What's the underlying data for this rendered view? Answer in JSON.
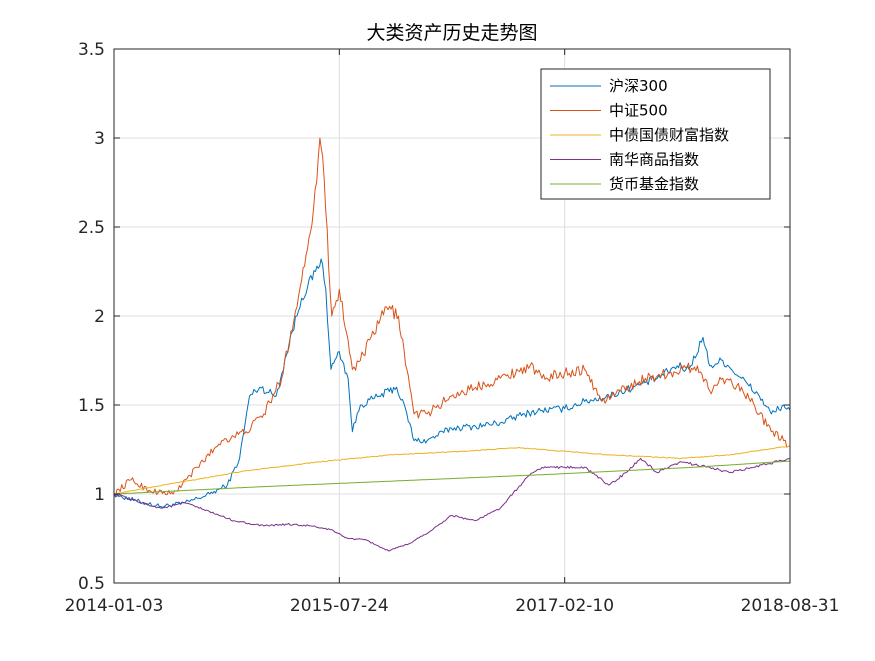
{
  "chart_data": {
    "type": "line",
    "title": "大类资产历史走势图",
    "xlabel": "",
    "ylabel": "",
    "x_tick_labels": [
      "2014-01-03",
      "2015-07-24",
      "2017-02-10",
      "2018-08-31"
    ],
    "xlim": [
      "2014-01-03",
      "2018-08-31"
    ],
    "ylim": [
      0.5,
      3.5
    ],
    "y_ticks": [
      0.5,
      1,
      1.5,
      2,
      2.5,
      3,
      3.5
    ],
    "y_tick_labels": [
      "0.5",
      "1",
      "1.5",
      "2",
      "2.5",
      "3",
      "3.5"
    ],
    "grid": true,
    "legend_position": "top-right",
    "series": [
      {
        "name": "沪深300",
        "color": "#0072BD",
        "points": [
          [
            "2014-01-03",
            1.0
          ],
          [
            "2014-03-01",
            0.96
          ],
          [
            "2014-05-01",
            0.93
          ],
          [
            "2014-07-01",
            0.95
          ],
          [
            "2014-09-01",
            1.0
          ],
          [
            "2014-10-15",
            1.05
          ],
          [
            "2014-11-15",
            1.2
          ],
          [
            "2014-12-10",
            1.55
          ],
          [
            "2015-01-05",
            1.6
          ],
          [
            "2015-02-15",
            1.55
          ],
          [
            "2015-03-20",
            1.85
          ],
          [
            "2015-04-20",
            2.1
          ],
          [
            "2015-05-25",
            2.25
          ],
          [
            "2015-06-08",
            2.32
          ],
          [
            "2015-06-20",
            2.15
          ],
          [
            "2015-07-03",
            1.7
          ],
          [
            "2015-07-24",
            1.8
          ],
          [
            "2015-08-15",
            1.65
          ],
          [
            "2015-08-26",
            1.35
          ],
          [
            "2015-09-15",
            1.5
          ],
          [
            "2015-11-01",
            1.55
          ],
          [
            "2015-12-15",
            1.6
          ],
          [
            "2016-01-10",
            1.45
          ],
          [
            "2016-01-28",
            1.3
          ],
          [
            "2016-03-01",
            1.3
          ],
          [
            "2016-05-01",
            1.37
          ],
          [
            "2016-07-01",
            1.38
          ],
          [
            "2016-09-01",
            1.4
          ],
          [
            "2016-11-01",
            1.45
          ],
          [
            "2016-12-15",
            1.47
          ],
          [
            "2017-02-10",
            1.48
          ],
          [
            "2017-04-01",
            1.52
          ],
          [
            "2017-06-01",
            1.55
          ],
          [
            "2017-08-01",
            1.6
          ],
          [
            "2017-10-01",
            1.65
          ],
          [
            "2017-11-20",
            1.72
          ],
          [
            "2017-12-20",
            1.7
          ],
          [
            "2018-01-24",
            1.88
          ],
          [
            "2018-02-10",
            1.72
          ],
          [
            "2018-03-15",
            1.75
          ],
          [
            "2018-05-01",
            1.65
          ],
          [
            "2018-06-15",
            1.55
          ],
          [
            "2018-07-15",
            1.45
          ],
          [
            "2018-08-15",
            1.5
          ],
          [
            "2018-08-31",
            1.47
          ]
        ]
      },
      {
        "name": "中证500",
        "color": "#D95319",
        "points": [
          [
            "2014-01-03",
            1.0
          ],
          [
            "2014-02-15",
            1.08
          ],
          [
            "2014-04-01",
            1.02
          ],
          [
            "2014-06-01",
            1.0
          ],
          [
            "2014-08-01",
            1.15
          ],
          [
            "2014-10-01",
            1.3
          ],
          [
            "2014-12-01",
            1.35
          ],
          [
            "2015-01-15",
            1.45
          ],
          [
            "2015-03-01",
            1.65
          ],
          [
            "2015-04-20",
            2.2
          ],
          [
            "2015-05-20",
            2.6
          ],
          [
            "2015-06-05",
            3.0
          ],
          [
            "2015-06-12",
            2.9
          ],
          [
            "2015-07-05",
            2.0
          ],
          [
            "2015-07-24",
            2.15
          ],
          [
            "2015-08-26",
            1.7
          ],
          [
            "2015-09-15",
            1.75
          ],
          [
            "2015-11-20",
            2.05
          ],
          [
            "2015-12-20",
            2.0
          ],
          [
            "2016-01-10",
            1.7
          ],
          [
            "2016-01-28",
            1.45
          ],
          [
            "2016-03-01",
            1.45
          ],
          [
            "2016-05-01",
            1.55
          ],
          [
            "2016-07-01",
            1.6
          ],
          [
            "2016-09-01",
            1.65
          ],
          [
            "2016-11-15",
            1.72
          ],
          [
            "2016-12-15",
            1.65
          ],
          [
            "2017-02-10",
            1.68
          ],
          [
            "2017-04-01",
            1.7
          ],
          [
            "2017-05-15",
            1.52
          ],
          [
            "2017-07-01",
            1.58
          ],
          [
            "2017-09-01",
            1.65
          ],
          [
            "2017-11-01",
            1.68
          ],
          [
            "2018-01-10",
            1.72
          ],
          [
            "2018-02-10",
            1.58
          ],
          [
            "2018-03-15",
            1.65
          ],
          [
            "2018-05-01",
            1.6
          ],
          [
            "2018-06-15",
            1.45
          ],
          [
            "2018-07-15",
            1.35
          ],
          [
            "2018-08-15",
            1.3
          ],
          [
            "2018-08-31",
            1.27
          ]
        ]
      },
      {
        "name": "中债国债财富指数",
        "color": "#EDB120",
        "points": [
          [
            "2014-01-03",
            1.0
          ],
          [
            "2014-06-01",
            1.06
          ],
          [
            "2014-12-01",
            1.13
          ],
          [
            "2015-06-01",
            1.18
          ],
          [
            "2015-12-01",
            1.22
          ],
          [
            "2016-06-01",
            1.24
          ],
          [
            "2016-10-15",
            1.26
          ],
          [
            "2017-02-10",
            1.24
          ],
          [
            "2017-06-01",
            1.22
          ],
          [
            "2017-12-01",
            1.2
          ],
          [
            "2018-04-01",
            1.22
          ],
          [
            "2018-08-31",
            1.27
          ]
        ]
      },
      {
        "name": "南华商品指数",
        "color": "#7E2F8E",
        "points": [
          [
            "2014-01-03",
            1.0
          ],
          [
            "2014-03-15",
            0.95
          ],
          [
            "2014-05-01",
            0.92
          ],
          [
            "2014-07-01",
            0.95
          ],
          [
            "2014-09-01",
            0.9
          ],
          [
            "2014-11-01",
            0.85
          ],
          [
            "2015-01-15",
            0.82
          ],
          [
            "2015-03-15",
            0.83
          ],
          [
            "2015-05-15",
            0.82
          ],
          [
            "2015-07-01",
            0.8
          ],
          [
            "2015-08-15",
            0.75
          ],
          [
            "2015-10-01",
            0.74
          ],
          [
            "2015-11-25",
            0.68
          ],
          [
            "2016-01-15",
            0.72
          ],
          [
            "2016-03-15",
            0.8
          ],
          [
            "2016-05-01",
            0.88
          ],
          [
            "2016-07-01",
            0.85
          ],
          [
            "2016-09-01",
            0.92
          ],
          [
            "2016-11-10",
            1.1
          ],
          [
            "2016-12-15",
            1.15
          ],
          [
            "2017-02-10",
            1.15
          ],
          [
            "2017-04-01",
            1.15
          ],
          [
            "2017-06-01",
            1.05
          ],
          [
            "2017-07-15",
            1.12
          ],
          [
            "2017-08-20",
            1.2
          ],
          [
            "2017-10-01",
            1.12
          ],
          [
            "2017-12-01",
            1.18
          ],
          [
            "2018-02-10",
            1.15
          ],
          [
            "2018-04-01",
            1.12
          ],
          [
            "2018-06-01",
            1.15
          ],
          [
            "2018-08-31",
            1.2
          ]
        ]
      },
      {
        "name": "货币基金指数",
        "color": "#77AC30",
        "points": [
          [
            "2014-01-03",
            1.0
          ],
          [
            "2014-12-31",
            1.04
          ],
          [
            "2015-12-31",
            1.075
          ],
          [
            "2016-12-31",
            1.11
          ],
          [
            "2017-12-31",
            1.15
          ],
          [
            "2018-08-31",
            1.185
          ]
        ]
      }
    ]
  }
}
